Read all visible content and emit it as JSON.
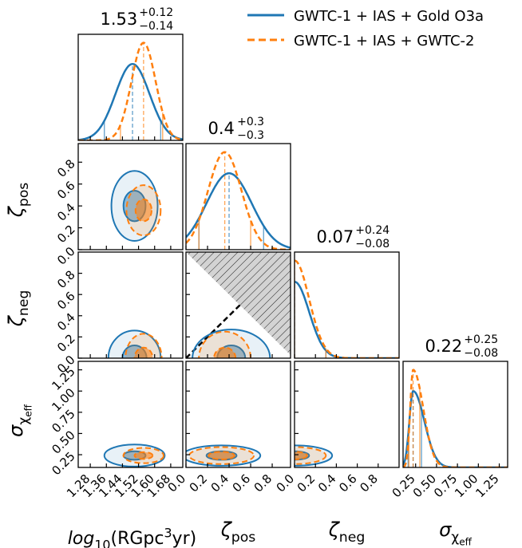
{
  "chart_data": {
    "type": "corner",
    "parameters": [
      {
        "key": "logR",
        "label_main": "log",
        "label_sub": "10",
        "label_rest": "(RGpc",
        "label_sup": "3",
        "label_tail": "yr)",
        "range": [
          1.22,
          1.74
        ],
        "ticks": [
          "1.28",
          "1.36",
          "1.44",
          "1.52",
          "1.60",
          "1.68"
        ],
        "tick_values": [
          1.28,
          1.36,
          1.44,
          1.52,
          1.6,
          1.68
        ]
      },
      {
        "key": "zeta_pos",
        "label_main": "ζ",
        "label_sub": "pos",
        "range": [
          0.0,
          0.97
        ],
        "ticks": [
          "0.0",
          "0.2",
          "0.4",
          "0.6",
          "0.8"
        ],
        "tick_values": [
          0.0,
          0.2,
          0.4,
          0.6,
          0.8
        ]
      },
      {
        "key": "zeta_neg",
        "label_main": "ζ",
        "label_sub": "neg",
        "range": [
          0.0,
          1.0
        ],
        "ticks": [
          "0.0",
          "0.2",
          "0.4",
          "0.6",
          "0.8"
        ],
        "tick_values": [
          0.0,
          0.2,
          0.4,
          0.6,
          0.8
        ]
      },
      {
        "key": "sigma_chi_eff",
        "label_main": "σ",
        "label_sub": "χ",
        "label_subsub": "eff",
        "range": [
          0.1,
          1.35
        ],
        "ticks": [
          "0.25",
          "0.50",
          "0.75",
          "1.00",
          "1.25"
        ],
        "tick_values": [
          0.25,
          0.5,
          0.75,
          1.0,
          1.25
        ]
      }
    ],
    "titles": [
      {
        "base": "1.53",
        "sup": "+0.12",
        "sub": "−0.14"
      },
      {
        "base": "0.4",
        "sup": "+0.3",
        "sub": "−0.3"
      },
      {
        "base": "0.07",
        "sup": "+0.24",
        "sub": "−0.08"
      },
      {
        "base": "0.22",
        "sup": "+0.25",
        "sub": "−0.08"
      }
    ],
    "series": [
      {
        "name": "GWTC-1 + IAS + Gold O3a",
        "color": "#1f77b4",
        "dash": "solid",
        "marginals": {
          "logR": {
            "mode": 1.49,
            "sigma": 0.085,
            "q": [
              1.35,
              1.49,
              1.63
            ]
          },
          "zeta_pos": {
            "mode": 0.4,
            "sigma": 0.21,
            "q": [
              0.12,
              0.4,
              0.72
            ]
          },
          "zeta_neg": {
            "mode": 0.0,
            "sigma": 0.14,
            "q": [
              0.0,
              0.0,
              0.3
            ],
            "half": true
          },
          "sigma_chi_eff": {
            "mode": 0.22,
            "sigma": 0.045,
            "tail": 0.2,
            "q": [
              0.16,
              0.22,
              0.32
            ]
          }
        },
        "contours": {
          "logR_zeta_pos": {
            "center": [
              1.5,
              0.4
            ],
            "r1": [
              0.055,
              0.14
            ],
            "r2": [
              0.115,
              0.32
            ]
          },
          "logR_zeta_neg": {
            "center": [
              1.5,
              0.0
            ],
            "r1": [
              0.06,
              0.12
            ],
            "r2": [
              0.13,
              0.26
            ]
          },
          "logR_sigma": {
            "center": [
              1.5,
              0.24
            ],
            "r1": [
              0.055,
              0.05
            ],
            "r2": [
              0.15,
              0.13
            ]
          },
          "zeta_pos_zeta_neg": {
            "center": [
              0.42,
              0.0
            ],
            "r1": [
              0.13,
              0.12
            ],
            "r2": [
              0.36,
              0.27
            ]
          },
          "zeta_pos_sigma": {
            "center": [
              0.33,
              0.24
            ],
            "r1": [
              0.14,
              0.05
            ],
            "r2": [
              0.36,
              0.12
            ]
          },
          "zeta_neg_sigma": {
            "center": [
              0.0,
              0.24
            ],
            "r1": [
              0.14,
              0.05
            ],
            "r2": [
              0.36,
              0.12
            ]
          }
        }
      },
      {
        "name": "GWTC-1 + IAS + GWTC-2",
        "color": "#ff7f0e",
        "dash": "dashed",
        "marginals": {
          "logR": {
            "mode": 1.545,
            "sigma": 0.06,
            "q": [
              1.43,
              1.545,
              1.64
            ]
          },
          "zeta_pos": {
            "mode": 0.36,
            "sigma": 0.155,
            "q": [
              0.12,
              0.36,
              0.6
            ]
          },
          "zeta_neg": {
            "mode": 0.0,
            "sigma": 0.14,
            "q": [
              0.0,
              0.0,
              0.3
            ],
            "half": true
          },
          "sigma_chi_eff": {
            "mode": 0.22,
            "sigma": 0.035,
            "tail": 0.18,
            "q": [
              0.17,
              0.22,
              0.3
            ]
          }
        },
        "contours": {
          "logR_zeta_pos": {
            "center": [
              1.545,
              0.36
            ],
            "r1": [
              0.04,
              0.1
            ],
            "r2": [
              0.085,
              0.23
            ]
          },
          "logR_zeta_neg": {
            "center": [
              1.545,
              0.0
            ],
            "r1": [
              0.045,
              0.1
            ],
            "r2": [
              0.09,
              0.23
            ]
          },
          "logR_sigma": {
            "center": [
              1.545,
              0.24
            ],
            "r1": [
              0.045,
              0.04
            ],
            "r2": [
              0.1,
              0.09
            ]
          },
          "zeta_pos_zeta_neg": {
            "center": [
              0.36,
              0.0
            ],
            "r1": [
              0.1,
              0.1
            ],
            "r2": [
              0.24,
              0.25
            ]
          },
          "zeta_pos_sigma": {
            "center": [
              0.33,
              0.24
            ],
            "r1": [
              0.12,
              0.045
            ],
            "r2": [
              0.3,
              0.1
            ]
          },
          "zeta_neg_sigma": {
            "center": [
              0.0,
              0.24
            ],
            "r1": [
              0.12,
              0.045
            ],
            "r2": [
              0.3,
              0.1
            ]
          }
        }
      }
    ],
    "excluded_region": {
      "panel": "zeta_pos_zeta_neg",
      "boundary": "zeta_pos + zeta_neg = 1",
      "hatched": true
    },
    "legend": {
      "placement": "top-right"
    }
  }
}
